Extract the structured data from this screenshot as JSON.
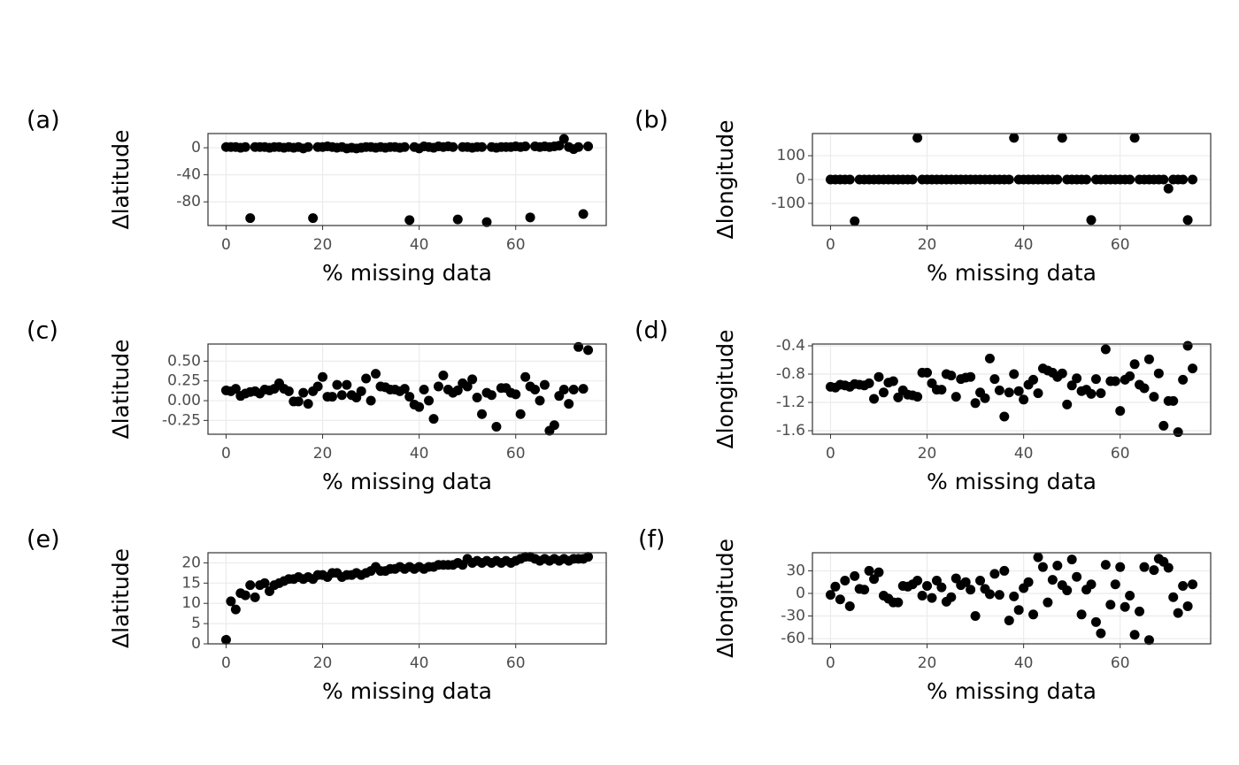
{
  "chart_data": [
    {
      "type": "scatter",
      "tag": "(a)",
      "xlabel": "% missing data",
      "ylabel": "Δlatitude",
      "color": "#000000",
      "grid": true,
      "xlim": [
        -3.75,
        78.75
      ],
      "xticks": [
        0,
        20,
        40,
        60
      ],
      "ylim": [
        -115,
        21
      ],
      "yticks": [
        0,
        -40,
        -80
      ],
      "x": [
        0,
        1,
        2,
        3,
        4,
        5,
        6,
        7,
        8,
        9,
        10,
        11,
        12,
        13,
        14,
        15,
        16,
        17,
        18,
        19,
        20,
        21,
        22,
        23,
        24,
        25,
        26,
        27,
        28,
        29,
        30,
        31,
        32,
        33,
        34,
        35,
        36,
        37,
        38,
        39,
        40,
        41,
        42,
        43,
        44,
        45,
        46,
        47,
        48,
        49,
        50,
        51,
        52,
        53,
        54,
        55,
        56,
        57,
        58,
        59,
        60,
        61,
        62,
        63,
        64,
        65,
        66,
        67,
        68,
        69,
        70,
        71,
        72,
        73,
        74,
        75
      ],
      "values": [
        1,
        1,
        1,
        0,
        1,
        -104,
        1,
        1,
        1,
        0,
        1,
        1,
        0,
        1,
        0,
        1,
        -1,
        1,
        -104,
        1,
        1,
        2,
        1,
        0,
        1,
        -1,
        0,
        -1,
        0,
        1,
        1,
        0,
        1,
        0,
        1,
        1,
        0,
        1,
        -107,
        1,
        -1,
        2,
        1,
        0,
        2,
        1,
        2,
        1,
        -106,
        1,
        1,
        0,
        1,
        1,
        -110,
        1,
        0,
        1,
        1,
        1,
        2,
        1,
        2,
        -103,
        2,
        1,
        2,
        1,
        2,
        3,
        13,
        1,
        -2,
        1,
        -98,
        2
      ]
    },
    {
      "type": "scatter",
      "tag": "(b)",
      "xlabel": "% missing data",
      "ylabel": "Δlongitude",
      "color": "#000000",
      "grid": true,
      "xlim": [
        -3.75,
        78.75
      ],
      "xticks": [
        0,
        20,
        40,
        60
      ],
      "ylim": [
        -193,
        193
      ],
      "yticks": [
        100,
        0,
        -100
      ],
      "x": [
        0,
        1,
        2,
        3,
        4,
        5,
        6,
        7,
        8,
        9,
        10,
        11,
        12,
        13,
        14,
        15,
        16,
        17,
        18,
        19,
        20,
        21,
        22,
        23,
        24,
        25,
        26,
        27,
        28,
        29,
        30,
        31,
        32,
        33,
        34,
        35,
        36,
        37,
        38,
        39,
        40,
        41,
        42,
        43,
        44,
        45,
        46,
        47,
        48,
        49,
        50,
        51,
        52,
        53,
        54,
        55,
        56,
        57,
        58,
        59,
        60,
        61,
        62,
        63,
        64,
        65,
        66,
        67,
        68,
        69,
        70,
        71,
        72,
        73,
        74,
        75
      ],
      "values": [
        0,
        0,
        0,
        0,
        0,
        -175,
        0,
        0,
        0,
        0,
        0,
        0,
        0,
        0,
        0,
        0,
        0,
        0,
        175,
        0,
        0,
        0,
        0,
        0,
        0,
        0,
        0,
        0,
        0,
        0,
        0,
        0,
        0,
        0,
        0,
        0,
        0,
        0,
        175,
        0,
        0,
        0,
        0,
        0,
        0,
        0,
        0,
        0,
        175,
        0,
        0,
        0,
        0,
        0,
        -170,
        0,
        0,
        0,
        0,
        0,
        0,
        0,
        0,
        175,
        0,
        0,
        0,
        0,
        0,
        0,
        -38,
        0,
        0,
        0,
        -170,
        0
      ]
    },
    {
      "type": "scatter",
      "tag": "(c)",
      "xlabel": "% missing data",
      "ylabel": "Δlatitude",
      "color": "#000000",
      "grid": true,
      "xlim": [
        -3.75,
        78.75
      ],
      "xticks": [
        0,
        20,
        40,
        60
      ],
      "ylim": [
        -0.425,
        0.717
      ],
      "yticks": [
        {
          "value": 0.5,
          "label": "0.50"
        },
        0.25,
        {
          "value": 0,
          "label": "0.00"
        },
        -0.25
      ],
      "x": [
        0,
        1,
        2,
        3,
        4,
        5,
        6,
        7,
        8,
        9,
        10,
        11,
        12,
        13,
        14,
        15,
        16,
        17,
        18,
        19,
        20,
        21,
        22,
        23,
        24,
        25,
        26,
        27,
        28,
        29,
        30,
        31,
        32,
        33,
        34,
        35,
        36,
        37,
        38,
        39,
        40,
        41,
        42,
        43,
        44,
        45,
        46,
        47,
        48,
        49,
        50,
        51,
        52,
        53,
        54,
        55,
        56,
        57,
        58,
        59,
        60,
        61,
        62,
        63,
        64,
        65,
        66,
        67,
        68,
        69,
        70,
        71,
        72,
        73,
        74,
        75
      ],
      "values": [
        0.13,
        0.12,
        0.15,
        0.06,
        0.09,
        0.11,
        0.12,
        0.09,
        0.14,
        0.13,
        0.15,
        0.22,
        0.15,
        0.12,
        -0.01,
        -0.01,
        0.1,
        -0.04,
        0.12,
        0.18,
        0.3,
        0.05,
        0.05,
        0.2,
        0.07,
        0.2,
        0.07,
        0.04,
        0.12,
        0.28,
        0.0,
        0.34,
        0.18,
        0.17,
        0.14,
        0.14,
        0.12,
        0.15,
        0.05,
        -0.05,
        -0.08,
        0.14,
        0.0,
        -0.23,
        0.18,
        0.32,
        0.14,
        0.1,
        0.13,
        0.22,
        0.18,
        0.27,
        0.04,
        -0.17,
        0.1,
        0.07,
        -0.33,
        0.16,
        0.16,
        0.1,
        0.08,
        -0.17,
        0.3,
        0.18,
        0.14,
        0.0,
        0.2,
        -0.38,
        -0.31,
        0.06,
        0.14,
        -0.04,
        0.14,
        0.68,
        0.15,
        0.64
      ]
    },
    {
      "type": "scatter",
      "tag": "(d)",
      "xlabel": "% missing data",
      "ylabel": "Δlongitude",
      "color": "#000000",
      "grid": true,
      "xlim": [
        -3.75,
        78.75
      ],
      "xticks": [
        0,
        20,
        40,
        60
      ],
      "ylim": [
        -1.65,
        -0.375
      ],
      "yticks": [
        -0.4,
        -0.8,
        -1.2,
        -1.6
      ],
      "x": [
        0,
        1,
        2,
        3,
        4,
        5,
        6,
        7,
        8,
        9,
        10,
        11,
        12,
        13,
        14,
        15,
        16,
        17,
        18,
        19,
        20,
        21,
        22,
        23,
        24,
        25,
        26,
        27,
        28,
        29,
        30,
        31,
        32,
        33,
        34,
        35,
        36,
        37,
        38,
        39,
        40,
        41,
        42,
        43,
        44,
        45,
        46,
        47,
        48,
        49,
        50,
        51,
        52,
        53,
        54,
        55,
        56,
        57,
        58,
        59,
        60,
        61,
        62,
        63,
        64,
        65,
        66,
        67,
        68,
        69,
        70,
        71,
        72,
        73,
        74,
        75
      ],
      "values": [
        -0.98,
        -0.99,
        -0.95,
        -0.96,
        -0.98,
        -0.94,
        -0.95,
        -0.96,
        -0.93,
        -1.15,
        -0.84,
        -1.06,
        -0.92,
        -0.9,
        -1.13,
        -1.03,
        -1.09,
        -1.1,
        -1.12,
        -0.78,
        -0.78,
        -0.93,
        -1.02,
        -1.02,
        -0.8,
        -0.82,
        -1.12,
        -0.87,
        -0.85,
        -0.84,
        -1.21,
        -1.06,
        -1.14,
        -0.58,
        -0.87,
        -1.03,
        -1.4,
        -1.06,
        -0.8,
        -1.04,
        -1.16,
        -0.95,
        -0.88,
        -1.07,
        -0.72,
        -0.75,
        -0.78,
        -0.84,
        -0.79,
        -1.23,
        -0.96,
        -0.86,
        -1.04,
        -1.02,
        -1.08,
        -0.87,
        -1.07,
        -0.45,
        -0.9,
        -0.9,
        -1.32,
        -0.88,
        -0.83,
        -0.66,
        -0.95,
        -1.0,
        -0.59,
        -1.12,
        -0.79,
        -1.53,
        -1.18,
        -1.18,
        -1.62,
        -0.88,
        -0.4,
        -0.72
      ]
    },
    {
      "type": "scatter",
      "tag": "(e)",
      "xlabel": "% missing data",
      "ylabel": "Δlatitude",
      "color": "#000000",
      "grid": true,
      "xlim": [
        -3.75,
        78.75
      ],
      "xticks": [
        0,
        20,
        40,
        60
      ],
      "ylim": [
        0,
        22.5
      ],
      "yticks": [
        0,
        5,
        10,
        15,
        20
      ],
      "x": [
        0,
        1,
        2,
        3,
        4,
        5,
        6,
        7,
        8,
        9,
        10,
        11,
        12,
        13,
        14,
        15,
        16,
        17,
        18,
        19,
        20,
        21,
        22,
        23,
        24,
        25,
        26,
        27,
        28,
        29,
        30,
        31,
        32,
        33,
        34,
        35,
        36,
        37,
        38,
        39,
        40,
        41,
        42,
        43,
        44,
        45,
        46,
        47,
        48,
        49,
        50,
        51,
        52,
        53,
        54,
        55,
        56,
        57,
        58,
        59,
        60,
        61,
        62,
        63,
        64,
        65,
        66,
        67,
        68,
        69,
        70,
        71,
        72,
        73,
        74,
        75
      ],
      "values": [
        1,
        10.5,
        8.5,
        12.5,
        12,
        14.5,
        11.5,
        14.5,
        15,
        13,
        14.5,
        15,
        15.5,
        16,
        16,
        16.5,
        16,
        16.5,
        16,
        17,
        17,
        16.5,
        17.5,
        17.5,
        16.5,
        17,
        17,
        17.5,
        17,
        17.5,
        18,
        19,
        18,
        18,
        18.5,
        18.5,
        19,
        18.5,
        19,
        18.5,
        19,
        18.5,
        19,
        19,
        19.5,
        19.5,
        19.5,
        19.5,
        20,
        19.5,
        21,
        20,
        20.5,
        20,
        20.5,
        20,
        20.5,
        20,
        20.5,
        20,
        20.5,
        21,
        21.5,
        21.5,
        21,
        20.5,
        21,
        20.5,
        21,
        20.5,
        21,
        20.5,
        21,
        21,
        21,
        21.5
      ]
    },
    {
      "type": "scatter",
      "tag": "(f)",
      "xlabel": "% missing data",
      "ylabel": "Δlongitude",
      "color": "#000000",
      "grid": true,
      "xlim": [
        -3.75,
        78.75
      ],
      "xticks": [
        0,
        20,
        40,
        60
      ],
      "ylim": [
        -67,
        54
      ],
      "yticks": [
        30,
        0,
        -30,
        -60
      ],
      "x": [
        0,
        1,
        2,
        3,
        4,
        5,
        6,
        7,
        8,
        9,
        10,
        11,
        12,
        13,
        14,
        15,
        16,
        17,
        18,
        19,
        20,
        21,
        22,
        23,
        24,
        25,
        26,
        27,
        28,
        29,
        30,
        31,
        32,
        33,
        34,
        35,
        36,
        37,
        38,
        39,
        40,
        41,
        42,
        43,
        44,
        45,
        46,
        47,
        48,
        49,
        50,
        51,
        52,
        53,
        54,
        55,
        56,
        57,
        58,
        59,
        60,
        61,
        62,
        63,
        64,
        65,
        66,
        67,
        68,
        69,
        70,
        71,
        72,
        73,
        74,
        75
      ],
      "values": [
        -2,
        9,
        -8,
        17,
        -17,
        23,
        6,
        5,
        30,
        19,
        28,
        -3,
        -7,
        -12,
        -12,
        10,
        9,
        12,
        17,
        -3,
        10,
        -6,
        17,
        8,
        -11,
        -5,
        20,
        11,
        15,
        5,
        -30,
        17,
        6,
        -1,
        26,
        -2,
        30,
        -36,
        -4,
        -22,
        7,
        15,
        -28,
        48,
        35,
        -12,
        18,
        37,
        11,
        4,
        45,
        22,
        -28,
        5,
        12,
        -38,
        -53,
        38,
        -15,
        12,
        35,
        -18,
        -3,
        -55,
        -24,
        35,
        -62,
        31,
        46,
        42,
        34,
        -5,
        -26,
        10,
        -17,
        12
      ]
    }
  ]
}
